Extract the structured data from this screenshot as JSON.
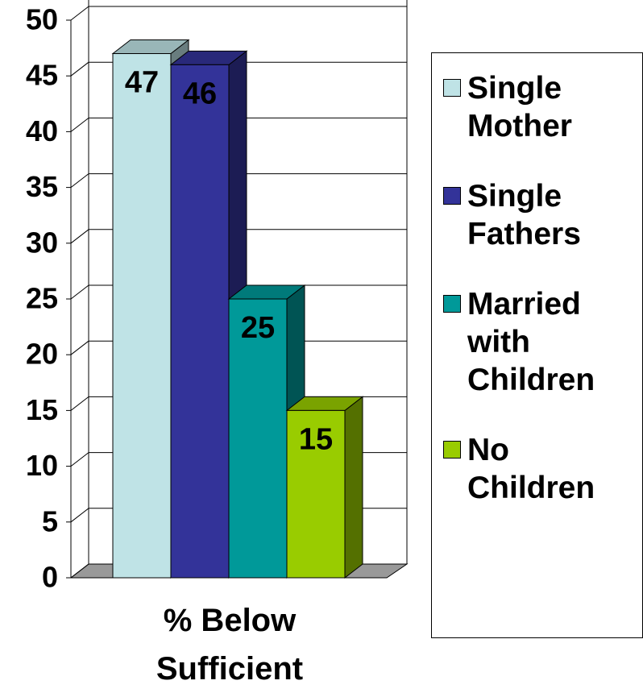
{
  "chart_data": {
    "type": "bar",
    "categories": [
      "% Below Sufficient"
    ],
    "series": [
      {
        "name": "Single Mother",
        "color": "#bfe3e6",
        "values": [
          47
        ]
      },
      {
        "name": "Single Fathers",
        "color": "#333399",
        "values": [
          46
        ]
      },
      {
        "name": "Married with Children",
        "color": "#009999",
        "values": [
          25
        ]
      },
      {
        "name": "No Children",
        "color": "#99cc00",
        "values": [
          15
        ]
      }
    ],
    "ylim": [
      0,
      50
    ],
    "yticks": [
      0,
      5,
      10,
      15,
      20,
      25,
      30,
      35,
      40,
      45,
      50
    ],
    "grid": true,
    "legend": "right"
  }
}
